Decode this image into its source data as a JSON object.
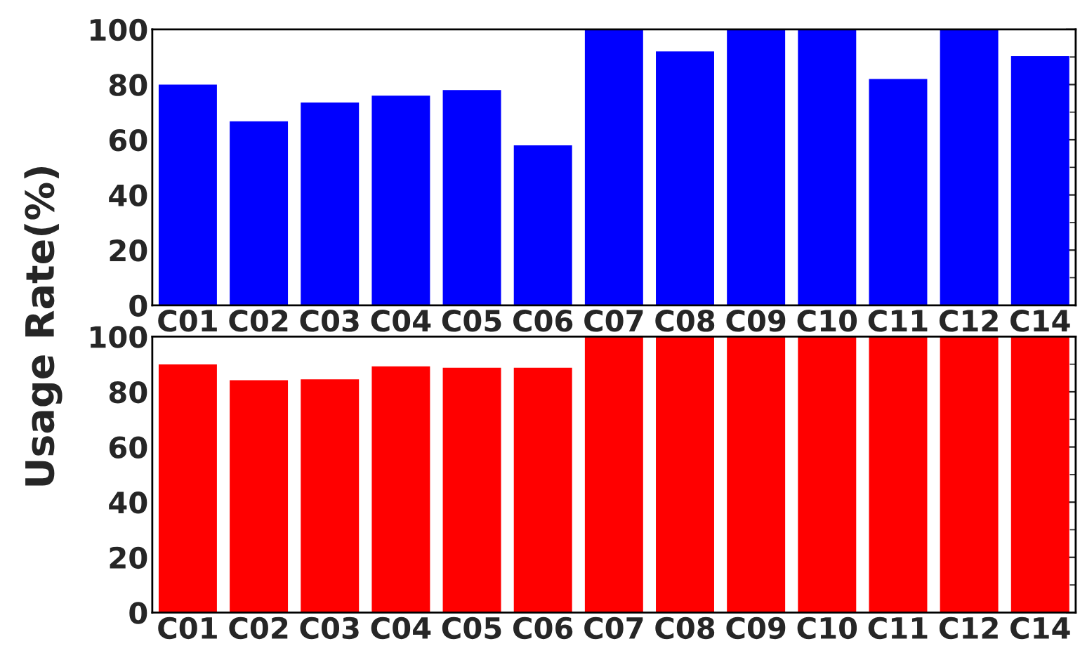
{
  "chart_data": [
    {
      "type": "bar",
      "ylabel": "Usage Rate(%)",
      "categories": [
        "C01",
        "C02",
        "C03",
        "C04",
        "C05",
        "C06",
        "C07",
        "C08",
        "C09",
        "C10",
        "C11",
        "C12",
        "C14"
      ],
      "values": [
        80,
        66.7,
        73.5,
        76,
        78,
        58,
        100,
        92,
        100,
        100,
        82,
        100,
        90.3
      ],
      "color": "#0000ff",
      "ylim": [
        0,
        100
      ],
      "yticks": [
        0,
        20,
        40,
        60,
        80,
        100
      ],
      "grid": false
    },
    {
      "type": "bar",
      "categories": [
        "C01",
        "C02",
        "C03",
        "C04",
        "C05",
        "C06",
        "C07",
        "C08",
        "C09",
        "C10",
        "C11",
        "C12",
        "C14"
      ],
      "values": [
        89.9,
        84.2,
        84.5,
        89.2,
        88.7,
        88.7,
        100,
        100,
        100,
        100,
        100,
        100,
        100
      ],
      "color": "#ff0000",
      "ylim": [
        0,
        100
      ],
      "yticks": [
        0,
        20,
        40,
        60,
        80,
        100
      ],
      "grid": false
    }
  ]
}
